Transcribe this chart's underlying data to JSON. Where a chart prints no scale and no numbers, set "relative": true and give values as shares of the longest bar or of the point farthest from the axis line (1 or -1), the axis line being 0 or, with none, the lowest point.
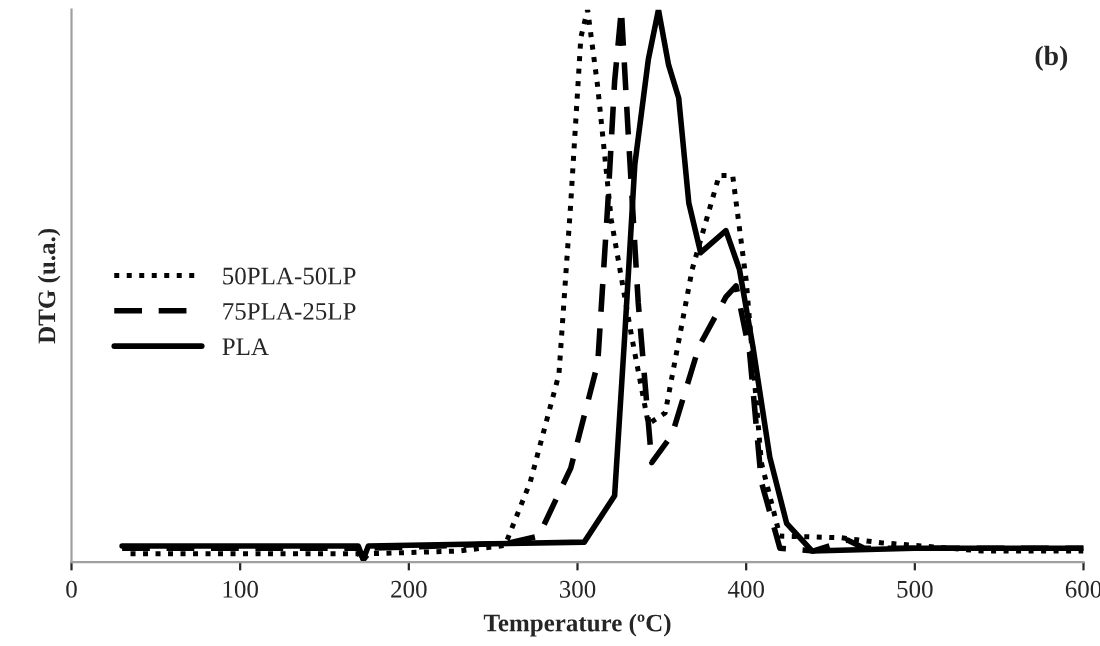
{
  "chart_data": {
    "type": "line",
    "relative": true,
    "xlabel": "Temperature (ºC)",
    "ylabel": "DTG (u.a.)",
    "annotations": [
      "(b)"
    ],
    "xlim": [
      0,
      600
    ],
    "xticks": [
      0,
      100,
      200,
      300,
      400,
      500,
      600
    ],
    "tick_labels": "x",
    "legend": "center left",
    "grid": false,
    "series": [
      {
        "name": "50PLA-50LP",
        "color": "#000000",
        "line_style": "dotted",
        "x": [
          35,
          100,
          170,
          173,
          176,
          230,
          257,
          272,
          289,
          296,
          302,
          306,
          312,
          320,
          332,
          342,
          352,
          368,
          384,
          392,
          400,
          409,
          420,
          456,
          480,
          540,
          600
        ],
        "values": [
          0.015,
          0.015,
          0.015,
          0.003,
          0.015,
          0.02,
          0.03,
          0.145,
          0.34,
          0.65,
          0.95,
          1.0,
          0.86,
          0.62,
          0.41,
          0.25,
          0.27,
          0.53,
          0.7,
          0.7,
          0.51,
          0.18,
          0.047,
          0.044,
          0.035,
          0.02,
          0.02
        ]
      },
      {
        "name": "75PLA-25LP",
        "color": "#000000",
        "line_style": "dashed",
        "x": [
          30,
          100,
          170,
          173,
          176,
          230,
          260,
          277,
          296,
          312,
          318,
          322,
          326,
          330,
          336,
          344,
          356,
          372,
          388,
          394,
          402,
          409,
          420,
          440,
          460,
          470,
          600
        ],
        "values": [
          0.025,
          0.025,
          0.025,
          0.005,
          0.025,
          0.03,
          0.035,
          0.047,
          0.17,
          0.36,
          0.65,
          0.87,
          1.0,
          0.78,
          0.47,
          0.18,
          0.23,
          0.39,
          0.48,
          0.5,
          0.38,
          0.145,
          0.025,
          0.02,
          0.04,
          0.025,
          0.025
        ]
      },
      {
        "name": "PLA",
        "color": "#000000",
        "line_style": "solid",
        "x": [
          30,
          100,
          170,
          173,
          176,
          250,
          304,
          322,
          328,
          334,
          342,
          348,
          354,
          360,
          366,
          373,
          388,
          396,
          404,
          414,
          424,
          439,
          500,
          600
        ],
        "values": [
          0.029,
          0.029,
          0.029,
          0.005,
          0.029,
          0.033,
          0.036,
          0.12,
          0.41,
          0.72,
          0.91,
          1.0,
          0.9,
          0.84,
          0.65,
          0.56,
          0.6,
          0.53,
          0.39,
          0.19,
          0.07,
          0.02,
          0.025,
          0.025
        ]
      }
    ]
  }
}
